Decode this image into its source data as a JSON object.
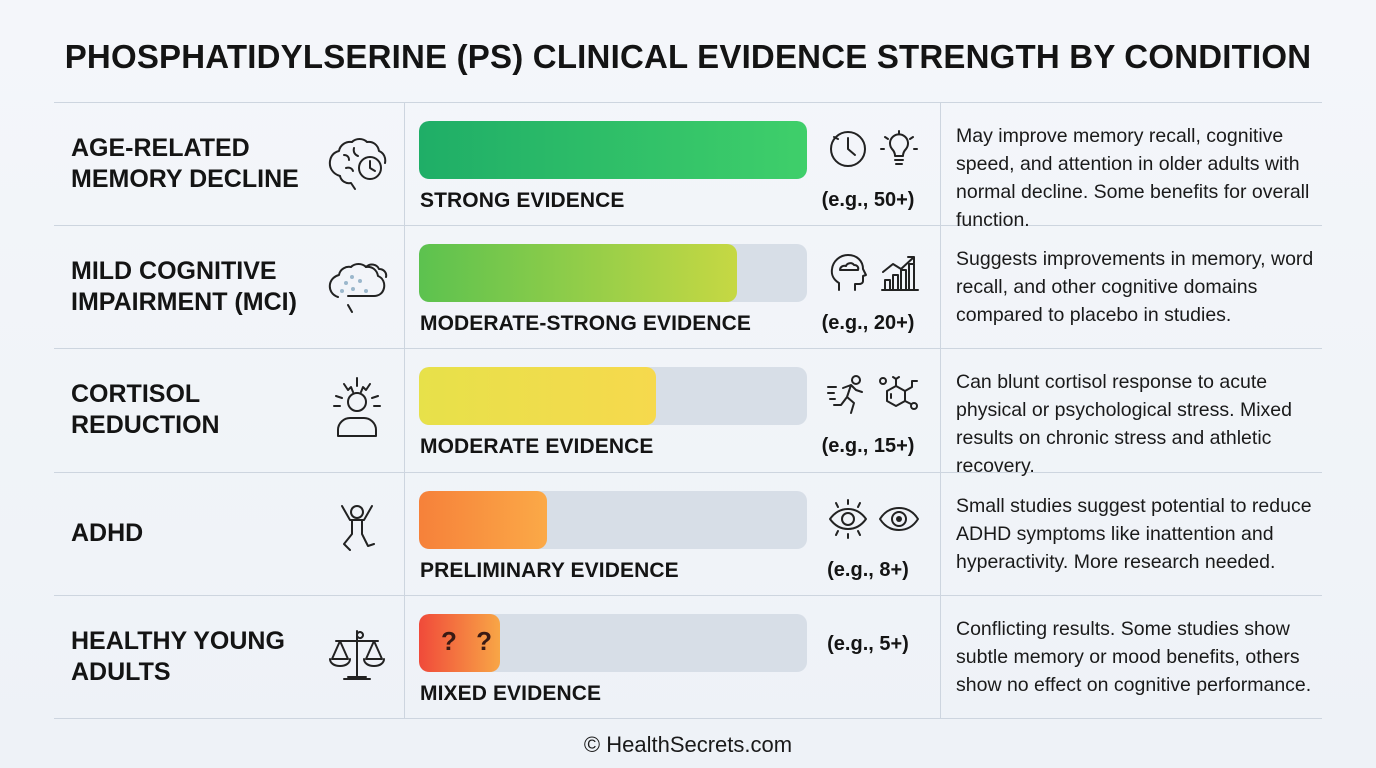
{
  "title": "PHOSPHATIDYLSERINE (PS) CLINICAL EVIDENCE STRENGTH BY CONDITION",
  "footer": "© HealthSecrets.com",
  "chart_data": {
    "type": "bar",
    "orientation": "horizontal",
    "xlim": [
      0,
      100
    ],
    "categories": [
      "AGE-RELATED MEMORY DECLINE",
      "MILD COGNITIVE IMPAIRMENT (MCI)",
      "CORTISOL REDUCTION",
      "ADHD",
      "HEALTHY YOUNG ADULTS"
    ],
    "values": [
      100,
      82,
      61,
      33,
      21
    ],
    "rows": [
      {
        "condition": "AGE-RELATED\nMEMORY DECLINE",
        "condition_icon": "brain-clock-icon",
        "level": "STRONG EVIDENCE",
        "strength": 100,
        "bar_color_start": "#1fae67",
        "bar_color_end": "#3fcf6a",
        "mini_icons": [
          "clock-icon",
          "lightbulb-icon"
        ],
        "studies": "(e.g., 50+)",
        "description": "May improve memory recall, cognitive speed, and attention in older adults with normal decline. Some benefits for overall function."
      },
      {
        "condition": "MILD COGNITIVE\nIMPAIRMENT (MCI)",
        "condition_icon": "foggy-brain-icon",
        "level": "MODERATE-STRONG EVIDENCE",
        "strength": 82,
        "bar_color_start": "#5cc24f",
        "bar_color_end": "#c6d843",
        "mini_icons": [
          "head-cloud-icon",
          "bar-growth-icon"
        ],
        "studies": "(e.g., 20+)",
        "description": "Suggests improvements in memory, word recall, and other cognitive domains compared to placebo in studies."
      },
      {
        "condition": "CORTISOL\nREDUCTION",
        "condition_icon": "stressed-person-icon",
        "level": "MODERATE EVIDENCE",
        "strength": 61,
        "bar_color_start": "#e7e14a",
        "bar_color_end": "#f6d94d",
        "mini_icons": [
          "running-person-icon",
          "molecule-icon"
        ],
        "studies": "(e.g., 15+)",
        "description": "Can blunt cortisol response to acute physical or psychological stress. Mixed results on chronic stress and athletic recovery."
      },
      {
        "condition": "ADHD",
        "condition_icon": "jumping-child-icon",
        "level": "PRELIMINARY EVIDENCE",
        "strength": 33,
        "bar_color_start": "#f6813a",
        "bar_color_end": "#fba947",
        "mini_icons": [
          "focus-eye-icon",
          "eye-icon"
        ],
        "studies": "(e.g., 8+)",
        "description": "Small studies suggest potential to reduce ADHD symptoms like inattention and hyperactivity. More research needed."
      },
      {
        "condition": "HEALTHY YOUNG\nADULTS",
        "condition_icon": "balance-scale-icon",
        "level": "MIXED EVIDENCE",
        "strength": 21,
        "bar_color_start": "#f04a3a",
        "bar_color_end": "#f8a646",
        "bar_marks": "? ?",
        "mini_icons": [],
        "studies": "(e.g., 5+)",
        "description": "Conflicting results. Some studies show subtle memory or mood benefits, others show no effect on cognitive performance."
      }
    ]
  }
}
